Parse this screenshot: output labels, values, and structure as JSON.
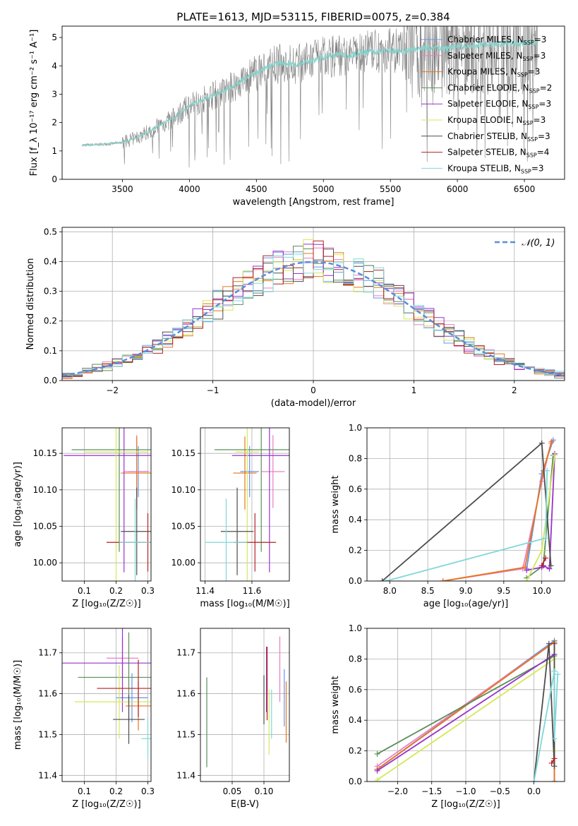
{
  "figure": {
    "title": "PLATE=1613, MJD=53115, FIBERID=0075, z=0.384"
  },
  "models": [
    {
      "name": "Chabrier MILES",
      "nssp": "3",
      "color": "#6495ed"
    },
    {
      "name": "Salpeter MILES",
      "nssp": "3",
      "color": "#e97fc0"
    },
    {
      "name": "Kroupa MILES",
      "nssp": "3",
      "color": "#e8751a"
    },
    {
      "name": "Chabrier ELODIE",
      "nssp": "2",
      "color": "#5a8f5a"
    },
    {
      "name": "Salpeter ELODIE",
      "nssp": "3",
      "color": "#9932cc"
    },
    {
      "name": "Kroupa ELODIE",
      "nssp": "3",
      "color": "#d4e85a"
    },
    {
      "name": "Chabrier STELIB",
      "nssp": "3",
      "color": "#4d4d4d"
    },
    {
      "name": "Salpeter STELIB",
      "nssp": "4",
      "color": "#b22222"
    },
    {
      "name": "Kroupa STELIB",
      "nssp": "3",
      "color": "#7fd8d8"
    }
  ],
  "chart_data": [
    {
      "id": "spectrum",
      "type": "line",
      "xlabel": "wavelength [Angstrom, rest frame]",
      "ylabel": "Flux [f_λ 10⁻¹⁷ erg cm⁻² s⁻¹ A⁻¹]",
      "xlim": [
        3050,
        6800
      ],
      "ylim": [
        0,
        5.4
      ],
      "xticks": [
        3500,
        4000,
        4500,
        5000,
        5500,
        6000,
        6500
      ],
      "yticks": [
        0,
        1,
        2,
        3,
        4,
        5
      ],
      "legend": "top-right",
      "data_color": "#808080",
      "model_color": "#7fd8d8",
      "x": [
        3200,
        3300,
        3400,
        3500,
        3600,
        3700,
        3800,
        3900,
        4000,
        4100,
        4200,
        4300,
        4400,
        4500,
        4600,
        4700,
        4800,
        4900,
        5000,
        5100,
        5200,
        5300,
        5400,
        5500,
        5600,
        5700,
        5800,
        5900,
        6000,
        6100,
        6200,
        6300,
        6400,
        6500,
        6600
      ],
      "y": [
        1.2,
        1.22,
        1.25,
        1.3,
        1.45,
        1.7,
        1.95,
        2.2,
        2.6,
        2.8,
        3.0,
        3.2,
        3.5,
        3.75,
        4.0,
        4.1,
        4.05,
        4.15,
        4.3,
        4.4,
        4.35,
        4.5,
        4.5,
        4.55,
        4.5,
        4.6,
        4.65,
        4.6,
        4.7,
        4.7,
        4.75,
        4.75,
        4.8,
        4.8,
        4.8
      ]
    },
    {
      "id": "residuals",
      "type": "line",
      "xlabel": "(data-model)/error",
      "ylabel": "Normed distribution",
      "xlim": [
        -2.5,
        2.5
      ],
      "ylim": [
        0,
        0.515
      ],
      "xticks": [
        -2,
        -1,
        0,
        1,
        2
      ],
      "yticks": [
        0.0,
        0.1,
        0.2,
        0.3,
        0.4,
        0.5
      ],
      "grid": true,
      "legend": "top-right",
      "legend_label": "𝒩(0, 1)",
      "curve_color": "#5b8dd9"
    },
    {
      "id": "age-vs-Z",
      "type": "scatter",
      "xlabel": "Z [log₁₀(Z/Z☉)]",
      "ylabel": "age  [log₁₀(age/yr)]",
      "xlim": [
        0.03,
        0.31
      ],
      "ylim": [
        9.975,
        10.185
      ],
      "xticks": [
        0.1,
        0.2,
        0.3
      ],
      "yticks": [
        10.0,
        10.05,
        10.1,
        10.15
      ],
      "grid": true,
      "points": [
        {
          "x": 0.27,
          "xerr": 0.03,
          "y": 10.125,
          "yerr": 0.035,
          "model": 0
        },
        {
          "x": 0.265,
          "xerr": 0.04,
          "y": 10.125,
          "yerr": 0.05,
          "model": 1
        },
        {
          "x": 0.265,
          "xerr": 0.05,
          "y": 10.123,
          "yerr": 0.05,
          "model": 2
        },
        {
          "x": 0.21,
          "xerr": 0.15,
          "y": 10.155,
          "yerr": 0.14,
          "model": 3
        },
        {
          "x": 0.225,
          "xerr": 0.19,
          "y": 10.147,
          "yerr": 0.16,
          "model": 4
        },
        {
          "x": 0.2,
          "xerr": 0.1,
          "y": 10.152,
          "yerr": 0.18,
          "model": 5
        },
        {
          "x": 0.265,
          "xerr": 0.05,
          "y": 10.043,
          "yerr": 0.06,
          "model": 6
        },
        {
          "x": 0.3,
          "xerr": 0.13,
          "y": 10.028,
          "yerr": 0.04,
          "model": 7
        },
        {
          "x": 0.26,
          "xerr": 0.05,
          "y": 10.028,
          "yerr": 0.06,
          "model": 8
        }
      ]
    },
    {
      "id": "age-vs-mass",
      "type": "scatter",
      "xlabel": "mass [log₁₀(M/M☉)]",
      "ylabel": "",
      "xlim": [
        11.38,
        11.76
      ],
      "ylim": [
        9.975,
        10.185
      ],
      "xticks": [
        11.4,
        11.6
      ],
      "yticks": [
        10.0,
        10.05,
        10.1,
        10.15
      ],
      "grid": true,
      "points": [
        {
          "x": 11.59,
          "xerr": 0.04,
          "y": 10.125,
          "yerr": 0.035,
          "model": 0
        },
        {
          "x": 11.69,
          "xerr": 0.05,
          "y": 10.125,
          "yerr": 0.05,
          "model": 1
        },
        {
          "x": 11.57,
          "xerr": 0.05,
          "y": 10.123,
          "yerr": 0.05,
          "model": 2
        },
        {
          "x": 11.64,
          "xerr": 0.2,
          "y": 10.155,
          "yerr": 0.14,
          "model": 3
        },
        {
          "x": 11.675,
          "xerr": 0.16,
          "y": 10.147,
          "yerr": 0.16,
          "model": 4
        },
        {
          "x": 11.58,
          "xerr": 0.05,
          "y": 10.152,
          "yerr": 0.18,
          "model": 5
        },
        {
          "x": 11.537,
          "xerr": 0.07,
          "y": 10.043,
          "yerr": 0.06,
          "model": 6
        },
        {
          "x": 11.613,
          "xerr": 0.09,
          "y": 10.028,
          "yerr": 0.04,
          "model": 7
        },
        {
          "x": 11.49,
          "xerr": 0.09,
          "y": 10.028,
          "yerr": 0.06,
          "model": 8
        }
      ]
    },
    {
      "id": "mass-weight-vs-age",
      "type": "line",
      "xlabel": "age  [log₁₀(age/yr)]",
      "ylabel": "mass weight",
      "xlim": [
        7.7,
        10.3
      ],
      "ylim": [
        0,
        1.0
      ],
      "xticks": [
        8.0,
        8.5,
        9.0,
        9.5,
        10.0
      ],
      "yticks": [
        0.0,
        0.2,
        0.4,
        0.6,
        0.8,
        1.0
      ],
      "grid": true,
      "series": [
        {
          "model": 0,
          "x": [
            9.8,
            10.0,
            10.15
          ],
          "y": [
            0.08,
            0.7,
            0.92
          ]
        },
        {
          "model": 1,
          "x": [
            8.7,
            9.75,
            10.0,
            10.12
          ],
          "y": [
            0.0,
            0.08,
            0.65,
            0.9
          ]
        },
        {
          "model": 2,
          "x": [
            8.7,
            9.78,
            10.02,
            10.13
          ],
          "y": [
            0.0,
            0.09,
            0.72,
            0.91
          ]
        },
        {
          "model": 3,
          "x": [
            9.8,
            10.02,
            10.15
          ],
          "y": [
            0.02,
            0.1,
            0.82
          ]
        },
        {
          "model": 4,
          "x": [
            9.8,
            10.0,
            10.02,
            10.1,
            10.17
          ],
          "y": [
            0.07,
            0.09,
            0.1,
            0.08,
            0.83
          ]
        },
        {
          "model": 5,
          "x": [
            9.8,
            10.0,
            10.17
          ],
          "y": [
            0.0,
            0.2,
            0.82
          ]
        },
        {
          "model": 6,
          "x": [
            7.9,
            10.0,
            10.12
          ],
          "y": [
            0.0,
            0.9,
            0.1
          ]
        },
        {
          "model": 7,
          "x": [
            10.0,
            10.05
          ],
          "y": [
            0.1,
            0.15
          ]
        },
        {
          "model": 8,
          "x": [
            7.95,
            10.05,
            10.07
          ],
          "y": [
            0.0,
            0.28,
            0.72
          ]
        }
      ]
    },
    {
      "id": "mass-vs-Z",
      "type": "scatter",
      "xlabel": "Z [log₁₀(Z/Z☉)]",
      "ylabel": "mass [log₁₀(M/M☉)]",
      "xlim": [
        0.03,
        0.31
      ],
      "ylim": [
        11.385,
        11.76
      ],
      "xticks": [
        0.1,
        0.2,
        0.3
      ],
      "yticks": [
        11.4,
        11.5,
        11.6,
        11.7
      ],
      "grid": true,
      "points": [
        {
          "x": 0.25,
          "xerr": 0.05,
          "y": 11.59,
          "yerr": 0.06,
          "model": 0
        },
        {
          "x": 0.22,
          "xerr": 0.05,
          "y": 11.687,
          "yerr": 0.05,
          "model": 1
        },
        {
          "x": 0.27,
          "xerr": 0.04,
          "y": 11.57,
          "yerr": 0.06,
          "model": 2
        },
        {
          "x": 0.24,
          "xerr": 0.16,
          "y": 11.64,
          "yerr": 0.11,
          "model": 3
        },
        {
          "x": 0.22,
          "xerr": 0.2,
          "y": 11.675,
          "yerr": 0.12,
          "model": 4
        },
        {
          "x": 0.21,
          "xerr": 0.14,
          "y": 11.58,
          "yerr": 0.09,
          "model": 5
        },
        {
          "x": 0.24,
          "xerr": 0.05,
          "y": 11.537,
          "yerr": 0.06,
          "model": 6
        },
        {
          "x": 0.27,
          "xerr": 0.13,
          "y": 11.613,
          "yerr": 0.07,
          "model": 7
        },
        {
          "x": 0.3,
          "xerr": 0.02,
          "y": 11.49,
          "yerr": 0.05,
          "model": 8
        }
      ]
    },
    {
      "id": "mass-vs-EBV",
      "type": "scatter",
      "xlabel": "E(B-V)",
      "ylabel": "",
      "xlim": [
        0.0,
        0.14
      ],
      "ylim": [
        11.385,
        11.76
      ],
      "xticks": [
        0.05,
        0.1
      ],
      "yticks": [
        11.4,
        11.5,
        11.6,
        11.7
      ],
      "grid": true,
      "points": [
        {
          "x": 0.132,
          "xerr": 0.0,
          "y": 11.59,
          "yerr": 0.07,
          "model": 0
        },
        {
          "x": 0.125,
          "xerr": 0.0,
          "y": 11.66,
          "yerr": 0.08,
          "model": 1
        },
        {
          "x": 0.135,
          "xerr": 0.0,
          "y": 11.555,
          "yerr": 0.075,
          "model": 2
        },
        {
          "x": 0.01,
          "xerr": 0.0,
          "y": 11.53,
          "yerr": 0.11,
          "model": 3
        },
        {
          "x": 0.104,
          "xerr": 0.0,
          "y": 11.635,
          "yerr": 0.08,
          "model": 4
        },
        {
          "x": 0.108,
          "xerr": 0.0,
          "y": 11.53,
          "yerr": 0.08,
          "model": 5
        },
        {
          "x": 0.1,
          "xerr": 0.0,
          "y": 11.585,
          "yerr": 0.06,
          "model": 6
        },
        {
          "x": 0.105,
          "xerr": 0.0,
          "y": 11.625,
          "yerr": 0.09,
          "model": 7
        },
        {
          "x": 0.112,
          "xerr": 0.0,
          "y": 11.55,
          "yerr": 0.06,
          "model": 8
        }
      ]
    },
    {
      "id": "mass-weight-vs-Z",
      "type": "line",
      "xlabel": "Z [log₁₀(Z/Z☉)]",
      "ylabel": "mass weight",
      "xlim": [
        -2.45,
        0.45
      ],
      "ylim": [
        0,
        1.0
      ],
      "xticks": [
        -2.0,
        -1.5,
        -1.0,
        -0.5,
        0.0
      ],
      "yticks": [
        0.0,
        0.2,
        0.4,
        0.6,
        0.8,
        1.0
      ],
      "grid": true,
      "series": [
        {
          "model": 0,
          "x": [
            -2.3,
            0.3,
            0.3
          ],
          "y": [
            0.08,
            0.92,
            0.0
          ]
        },
        {
          "model": 1,
          "x": [
            -2.3,
            0.3,
            0.3
          ],
          "y": [
            0.1,
            0.91,
            0.0
          ]
        },
        {
          "model": 2,
          "x": [
            -2.3,
            0.3,
            0.3
          ],
          "y": [
            0.08,
            0.91,
            0.0
          ]
        },
        {
          "model": 3,
          "x": [
            -2.3,
            0.3
          ],
          "y": [
            0.18,
            0.82
          ]
        },
        {
          "model": 4,
          "x": [
            -2.3,
            0.3
          ],
          "y": [
            0.07,
            0.83
          ]
        },
        {
          "model": 5,
          "x": [
            -2.3,
            0.3,
            0.3
          ],
          "y": [
            0.01,
            0.8,
            0.2
          ]
        },
        {
          "model": 6,
          "x": [
            0.0,
            0.22,
            0.3,
            0.3
          ],
          "y": [
            0.0,
            0.9,
            0.1,
            0.9
          ]
        },
        {
          "model": 7,
          "x": [
            0.26,
            0.3
          ],
          "y": [
            0.12,
            0.15
          ]
        },
        {
          "model": 8,
          "x": [
            0.0,
            0.3,
            0.3,
            0.35
          ],
          "y": [
            0.0,
            0.72,
            0.28,
            0.7
          ]
        }
      ]
    }
  ]
}
